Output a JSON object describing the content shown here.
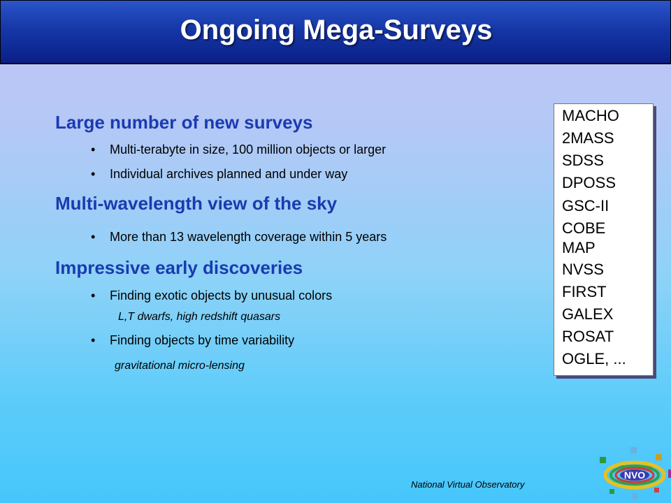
{
  "title": "Ongoing Mega-Surveys",
  "sections": [
    {
      "heading": "Large number of new surveys",
      "bullets": [
        "Multi-terabyte in size, 100 million objects or larger",
        "Individual archives planned and under way"
      ]
    },
    {
      "heading": "Multi-wavelength view of the sky",
      "bullets": [
        "More than 13 wavelength coverage within 5 years"
      ]
    },
    {
      "heading": "Impressive early discoveries",
      "bullets": [
        "Finding exotic objects by unusual colors",
        "Finding objects by time variability"
      ],
      "subnotes": [
        "L,T dwarfs, high redshift quasars",
        "gravitational micro-lensing"
      ]
    }
  ],
  "surveys": [
    "MACHO",
    "2MASS",
    "SDSS",
    "DPOSS",
    "GSC-II",
    "COBE",
    "MAP",
    "NVSS",
    "FIRST",
    "GALEX",
    "ROSAT",
    "OGLE, ..."
  ],
  "footer": "National Virtual Observatory",
  "logo_text": "NVO",
  "colors": {
    "title_bar": "#1637a8",
    "heading": "#1a3bb0",
    "background_top": "#c4c4f4",
    "background_bottom": "#46c6fb"
  }
}
